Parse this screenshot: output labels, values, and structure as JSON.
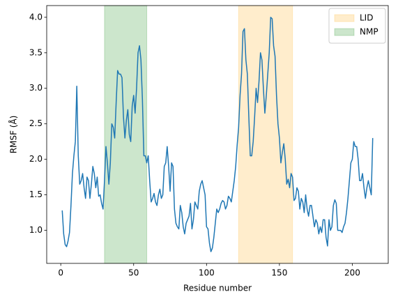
{
  "chart_data": {
    "type": "line",
    "xlabel": "Residue number",
    "ylabel": "RMSF (Å)",
    "x": [
      1,
      2,
      3,
      4,
      5,
      6,
      7,
      8,
      9,
      10,
      11,
      12,
      13,
      14,
      15,
      16,
      17,
      18,
      19,
      20,
      21,
      22,
      23,
      24,
      25,
      26,
      27,
      28,
      29,
      30,
      31,
      32,
      33,
      34,
      35,
      36,
      37,
      38,
      39,
      40,
      41,
      42,
      43,
      44,
      45,
      46,
      47,
      48,
      49,
      50,
      51,
      52,
      53,
      54,
      55,
      56,
      57,
      58,
      59,
      60,
      61,
      62,
      63,
      64,
      65,
      66,
      67,
      68,
      69,
      70,
      71,
      72,
      73,
      74,
      75,
      76,
      77,
      78,
      79,
      80,
      81,
      82,
      83,
      84,
      85,
      86,
      87,
      88,
      89,
      90,
      91,
      92,
      93,
      94,
      95,
      96,
      97,
      98,
      99,
      100,
      101,
      102,
      103,
      104,
      105,
      106,
      107,
      108,
      109,
      110,
      111,
      112,
      113,
      114,
      115,
      116,
      117,
      118,
      119,
      120,
      121,
      122,
      123,
      124,
      125,
      126,
      127,
      128,
      129,
      130,
      131,
      132,
      133,
      134,
      135,
      136,
      137,
      138,
      139,
      140,
      141,
      142,
      143,
      144,
      145,
      146,
      147,
      148,
      149,
      150,
      151,
      152,
      153,
      154,
      155,
      156,
      157,
      158,
      159,
      160,
      161,
      162,
      163,
      164,
      165,
      166,
      167,
      168,
      169,
      170,
      171,
      172,
      173,
      174,
      175,
      176,
      177,
      178,
      179,
      180,
      181,
      182,
      183,
      184,
      185,
      186,
      187,
      188,
      189,
      190,
      191,
      192,
      193,
      194,
      195,
      196,
      197,
      198,
      199,
      200,
      201,
      202,
      203,
      204,
      205,
      206,
      207,
      208,
      209,
      210,
      211,
      212,
      213,
      214
    ],
    "series": [
      {
        "color": "#1f77b4",
        "values": [
          1.28,
          0.95,
          0.8,
          0.77,
          0.85,
          0.97,
          1.35,
          1.8,
          2.05,
          2.25,
          3.03,
          2.05,
          1.65,
          1.7,
          1.8,
          1.6,
          1.45,
          1.75,
          1.7,
          1.45,
          1.65,
          1.9,
          1.8,
          1.6,
          1.75,
          1.48,
          1.5,
          1.38,
          1.3,
          1.7,
          2.18,
          1.95,
          1.65,
          1.95,
          2.5,
          2.45,
          2.3,
          2.8,
          3.25,
          3.2,
          3.2,
          3.15,
          2.6,
          2.3,
          2.55,
          2.7,
          2.35,
          2.25,
          2.75,
          2.9,
          2.65,
          3.0,
          3.5,
          3.6,
          3.4,
          2.85,
          2.05,
          2.05,
          1.95,
          2.05,
          1.7,
          1.4,
          1.45,
          1.52,
          1.4,
          1.35,
          1.5,
          1.58,
          1.45,
          1.5,
          1.9,
          1.95,
          2.18,
          1.9,
          1.55,
          1.95,
          1.9,
          1.3,
          1.1,
          1.05,
          1.02,
          1.35,
          1.25,
          1.05,
          0.95,
          1.1,
          1.15,
          1.2,
          1.38,
          1.02,
          1.15,
          1.4,
          1.35,
          1.3,
          1.55,
          1.65,
          1.7,
          1.6,
          1.5,
          1.05,
          1.02,
          0.82,
          0.7,
          0.75,
          0.9,
          1.1,
          1.3,
          1.25,
          1.3,
          1.38,
          1.42,
          1.4,
          1.3,
          1.35,
          1.48,
          1.45,
          1.4,
          1.55,
          1.7,
          1.9,
          2.2,
          2.45,
          2.9,
          3.2,
          3.8,
          3.84,
          3.4,
          3.2,
          2.6,
          2.05,
          2.05,
          2.25,
          2.6,
          3.0,
          2.8,
          3.1,
          3.5,
          3.4,
          3.0,
          2.65,
          2.9,
          3.2,
          3.5,
          4.0,
          3.98,
          3.6,
          3.45,
          2.9,
          2.5,
          2.3,
          1.95,
          2.1,
          2.22,
          2.0,
          1.65,
          1.72,
          1.6,
          1.8,
          1.75,
          1.42,
          1.45,
          1.6,
          1.55,
          1.3,
          1.45,
          1.4,
          1.25,
          1.5,
          1.3,
          1.2,
          1.35,
          1.35,
          1.2,
          1.05,
          1.15,
          1.1,
          0.95,
          1.05,
          0.97,
          1.15,
          1.15,
          0.9,
          0.78,
          1.15,
          1.0,
          1.05,
          1.35,
          1.43,
          1.38,
          1.0,
          1.0,
          1.0,
          0.97,
          1.05,
          1.1,
          1.25,
          1.45,
          1.7,
          1.95,
          2.0,
          2.25,
          2.18,
          2.18,
          2.0,
          1.7,
          1.7,
          1.8,
          1.6,
          1.45,
          1.6,
          1.7,
          1.6,
          1.5,
          2.3
        ]
      }
    ],
    "spans": [
      {
        "name": "LID",
        "range": [
          122,
          159
        ],
        "color": "#ffa500",
        "alpha": 0.2
      },
      {
        "name": "NMP",
        "range": [
          30,
          59
        ],
        "color": "#008000",
        "alpha": 0.2
      }
    ],
    "xlim": [
      -9.65,
      224.65
    ],
    "ylim": [
      0.535,
      4.165
    ],
    "xticks": [
      0,
      50,
      100,
      150,
      200
    ],
    "yticks": [
      {
        "value": 1,
        "label": "1.0"
      },
      {
        "value": 1.5,
        "label": "1.5"
      },
      {
        "value": 2,
        "label": "2.0"
      },
      {
        "value": 2.5,
        "label": "2.5"
      },
      {
        "value": 3,
        "label": "3.0"
      },
      {
        "value": 3.5,
        "label": "3.5"
      },
      {
        "value": 4,
        "label": "4.0"
      }
    ],
    "legend": "upper right"
  }
}
